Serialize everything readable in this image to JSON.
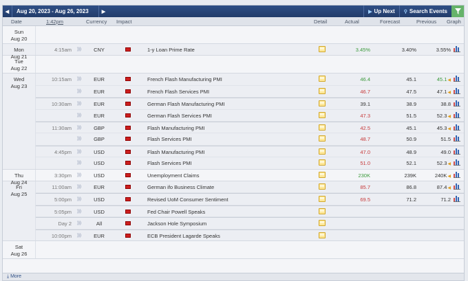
{
  "header": {
    "prev_label": "◀",
    "next_label": "▶",
    "date_range": "Aug 20, 2023 - Aug 26, 2023",
    "up_next": "Up Next",
    "search_events": "Search Events"
  },
  "columns": {
    "date": "Date",
    "time": "1:42pm",
    "currency": "Currency",
    "impact": "Impact",
    "detail": "Detail",
    "actual": "Actual",
    "forecast": "Forecast",
    "previous": "Previous",
    "graph": "Graph"
  },
  "colors": {
    "better": "#3c9a3c",
    "worse": "#c73a3a",
    "impact_high": "#cc1f1f",
    "header_bg": "#2f4f86"
  },
  "days": [
    {
      "dow": "Sun",
      "date": "Aug 20",
      "events": []
    },
    {
      "dow": "Mon",
      "date": "Aug 21",
      "events": [
        {
          "time": "4:15am",
          "currency": "CNY",
          "name": "1-y Loan Prime Rate",
          "actual": "3.45%",
          "actual_color": "green",
          "forecast": "3.40%",
          "previous": "3.55%",
          "prev_revised": false,
          "graph": true
        }
      ]
    },
    {
      "dow": "Tue",
      "date": "Aug 22",
      "events": []
    },
    {
      "dow": "Wed",
      "date": "Aug 23",
      "events": [
        {
          "time": "10:15am",
          "currency": "EUR",
          "name": "French Flash Manufacturing PMI",
          "actual": "46.4",
          "actual_color": "green",
          "forecast": "45.1",
          "previous": "45.1",
          "prev_color": "green",
          "prev_revised": true,
          "graph": true
        },
        {
          "time": "",
          "currency": "EUR",
          "name": "French Flash Services PMI",
          "actual": "46.7",
          "actual_color": "red",
          "forecast": "47.5",
          "previous": "47.1",
          "prev_revised": true,
          "graph": true
        },
        {
          "time": "10:30am",
          "currency": "EUR",
          "name": "German Flash Manufacturing PMI",
          "actual": "39.1",
          "actual_color": "",
          "forecast": "38.9",
          "previous": "38.8",
          "prev_revised": false,
          "graph": true
        },
        {
          "time": "",
          "currency": "EUR",
          "name": "German Flash Services PMI",
          "actual": "47.3",
          "actual_color": "red",
          "forecast": "51.5",
          "previous": "52.3",
          "prev_revised": true,
          "graph": true
        },
        {
          "time": "11:30am",
          "currency": "GBP",
          "name": "Flash Manufacturing PMI",
          "actual": "42.5",
          "actual_color": "red",
          "forecast": "45.1",
          "previous": "45.3",
          "prev_revised": true,
          "graph": true
        },
        {
          "time": "",
          "currency": "GBP",
          "name": "Flash Services PMI",
          "actual": "48.7",
          "actual_color": "red",
          "forecast": "50.9",
          "previous": "51.5",
          "prev_revised": false,
          "graph": true
        },
        {
          "time": "4:45pm",
          "currency": "USD",
          "name": "Flash Manufacturing PMI",
          "actual": "47.0",
          "actual_color": "red",
          "forecast": "48.9",
          "previous": "49.0",
          "prev_revised": false,
          "graph": true
        },
        {
          "time": "",
          "currency": "USD",
          "name": "Flash Services PMI",
          "actual": "51.0",
          "actual_color": "red",
          "forecast": "52.1",
          "previous": "52.3",
          "prev_revised": true,
          "graph": true
        }
      ]
    },
    {
      "dow": "Thu",
      "date": "Aug 24",
      "events": [
        {
          "time": "3:30pm",
          "currency": "USD",
          "name": "Unemployment Claims",
          "actual": "230K",
          "actual_color": "green",
          "forecast": "239K",
          "previous": "240K",
          "prev_revised": true,
          "graph": true
        }
      ]
    },
    {
      "dow": "Fri",
      "date": "Aug 25",
      "events": [
        {
          "time": "11:00am",
          "currency": "EUR",
          "name": "German ifo Business Climate",
          "actual": "85.7",
          "actual_color": "red",
          "forecast": "86.8",
          "previous": "87.4",
          "prev_revised": true,
          "graph": true
        },
        {
          "time": "5:00pm",
          "currency": "USD",
          "name": "Revised UoM Consumer Sentiment",
          "actual": "69.5",
          "actual_color": "red",
          "forecast": "71.2",
          "previous": "71.2",
          "prev_revised": false,
          "graph": true
        },
        {
          "time": "5:05pm",
          "currency": "USD",
          "name": "Fed Chair Powell Speaks",
          "actual": "",
          "actual_color": "",
          "forecast": "",
          "previous": "",
          "prev_revised": false,
          "graph": false
        },
        {
          "time": "Day 2",
          "currency": "All",
          "name": "Jackson Hole Symposium",
          "actual": "",
          "actual_color": "",
          "forecast": "",
          "previous": "",
          "prev_revised": false,
          "graph": false
        },
        {
          "time": "10:00pm",
          "currency": "EUR",
          "name": "ECB President Lagarde Speaks",
          "actual": "",
          "actual_color": "",
          "forecast": "",
          "previous": "",
          "prev_revised": false,
          "graph": false
        }
      ]
    },
    {
      "dow": "Sat",
      "date": "Aug 26",
      "events": []
    }
  ],
  "footer": {
    "more_label": "More"
  }
}
